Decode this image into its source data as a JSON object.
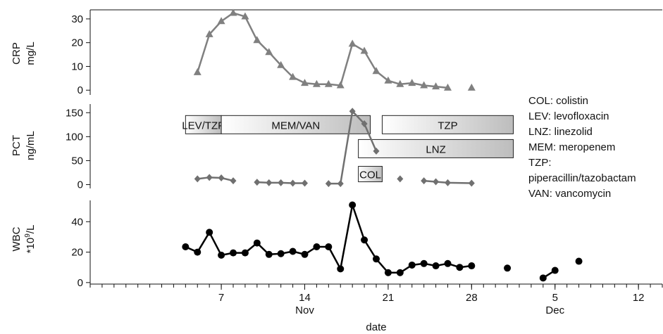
{
  "chart_data": {
    "type": "line",
    "title": "",
    "x_axis": {
      "label": "date",
      "unit": "day of year",
      "range": [
        300,
        348
      ],
      "tick_labels": [
        "7",
        "14",
        "21",
        "28",
        "5",
        "12"
      ],
      "tick_values": [
        311,
        318,
        325,
        332,
        339,
        346
      ],
      "month_labels": [
        {
          "label": "Nov",
          "at": 318
        },
        {
          "label": "Dec",
          "at": 339
        }
      ],
      "minor_ticks_every_day": true
    },
    "panels": [
      {
        "id": "crp",
        "ylabel_line1": "CRP",
        "ylabel_line2": "mg/L",
        "ylim": [
          -2,
          35
        ],
        "y_ticks": [
          0,
          10,
          20,
          30
        ],
        "y_tick_labels": [
          "0",
          "10",
          "20",
          "30"
        ],
        "series": [
          {
            "marker": "triangle",
            "color": "#808080",
            "points": [
              [
                309,
                7.5
              ],
              [
                310,
                23.5
              ],
              [
                311,
                29
              ],
              [
                312,
                32.5
              ],
              [
                313,
                31
              ],
              [
                314,
                21
              ],
              [
                315,
                16
              ],
              [
                316,
                10.5
              ],
              [
                317,
                5.5
              ],
              [
                318,
                3
              ],
              [
                319,
                2.5
              ],
              [
                320,
                2.5
              ],
              [
                321,
                2
              ],
              [
                322,
                19.5
              ],
              [
                323,
                16.5
              ],
              [
                324,
                8
              ],
              [
                325,
                4
              ],
              [
                326,
                2.5
              ],
              [
                327,
                3
              ],
              [
                328,
                2
              ],
              [
                329,
                1.5
              ],
              [
                330,
                1
              ],
              [
                332,
                1
              ]
            ],
            "connect_gaps": [
              330
            ]
          }
        ]
      },
      {
        "id": "pct",
        "ylabel_line1": "PCT",
        "ylabel_line2": "ng/mL",
        "ylim": [
          -8,
          168
        ],
        "y_ticks": [
          0,
          50,
          100,
          150
        ],
        "y_tick_labels": [
          "0",
          "50",
          "100",
          "150"
        ],
        "series": [
          {
            "marker": "diamond",
            "color": "#707070",
            "points": [
              [
                309,
                12
              ],
              [
                310,
                15
              ],
              [
                311,
                14
              ],
              [
                312,
                8
              ],
              [
                314,
                5
              ],
              [
                315,
                4
              ],
              [
                316,
                4
              ],
              [
                317,
                3
              ],
              [
                318,
                3
              ],
              [
                320,
                2
              ],
              [
                321,
                2
              ],
              [
                322,
                153
              ],
              [
                323,
                127
              ],
              [
                324,
                70
              ],
              [
                326,
                12
              ],
              [
                328,
                8
              ],
              [
                329,
                6
              ],
              [
                330,
                4
              ],
              [
                332,
                3
              ]
            ],
            "connect_gaps": [
              312,
              318,
              324,
              326
            ]
          }
        ],
        "antibiotic_bars": [
          {
            "label": "LEV/TZP",
            "start": 308,
            "end": 311,
            "y": 125
          },
          {
            "label": "MEM/VAN",
            "start": 311,
            "end": 323.5,
            "y": 125
          },
          {
            "label": "TZP",
            "start": 324.5,
            "end": 335.5,
            "y": 125
          },
          {
            "label": "LNZ",
            "start": 322.5,
            "end": 335.5,
            "y": 75
          },
          {
            "label": "COL",
            "start": 322.5,
            "end": 324.5,
            "y": 22
          }
        ]
      },
      {
        "id": "wbc",
        "ylabel_line1": "WBC",
        "ylabel_line2_base": "*10",
        "ylabel_line2_sup": "9",
        "ylabel_line2_tail": "/L",
        "ylim": [
          -1,
          54
        ],
        "y_ticks": [
          0,
          20,
          40
        ],
        "y_tick_labels": [
          "0",
          "20",
          "40"
        ],
        "series": [
          {
            "marker": "circle",
            "color": "#000000",
            "points": [
              [
                308,
                23.5
              ],
              [
                309,
                20
              ],
              [
                310,
                33
              ],
              [
                311,
                18
              ],
              [
                312,
                19.5
              ],
              [
                313,
                19.5
              ],
              [
                314,
                26
              ],
              [
                315,
                18.5
              ],
              [
                316,
                19
              ],
              [
                317,
                20.5
              ],
              [
                318,
                18.5
              ],
              [
                319,
                23.5
              ],
              [
                320,
                23.5
              ],
              [
                321,
                9
              ],
              [
                322,
                51
              ],
              [
                323,
                28
              ],
              [
                324,
                15.5
              ],
              [
                325,
                6.5
              ],
              [
                326,
                6.5
              ],
              [
                327,
                11.5
              ],
              [
                328,
                12.5
              ],
              [
                329,
                11
              ],
              [
                330,
                12.5
              ],
              [
                331,
                10
              ],
              [
                332,
                11
              ],
              [
                335,
                9.5
              ],
              [
                338,
                3
              ],
              [
                339,
                8
              ],
              [
                341,
                14
              ]
            ],
            "connect_gaps": [
              332,
              335,
              339
            ]
          }
        ]
      }
    ],
    "legend_lines": [
      "COL: colistin",
      "LEV: levofloxacin",
      "LNZ: linezolid",
      "MEM: meropenem",
      "TZP:",
      "piperacillin/tazobactam",
      "VAN: vancomycin"
    ],
    "legend_placement": "right-middle",
    "grid": false
  }
}
